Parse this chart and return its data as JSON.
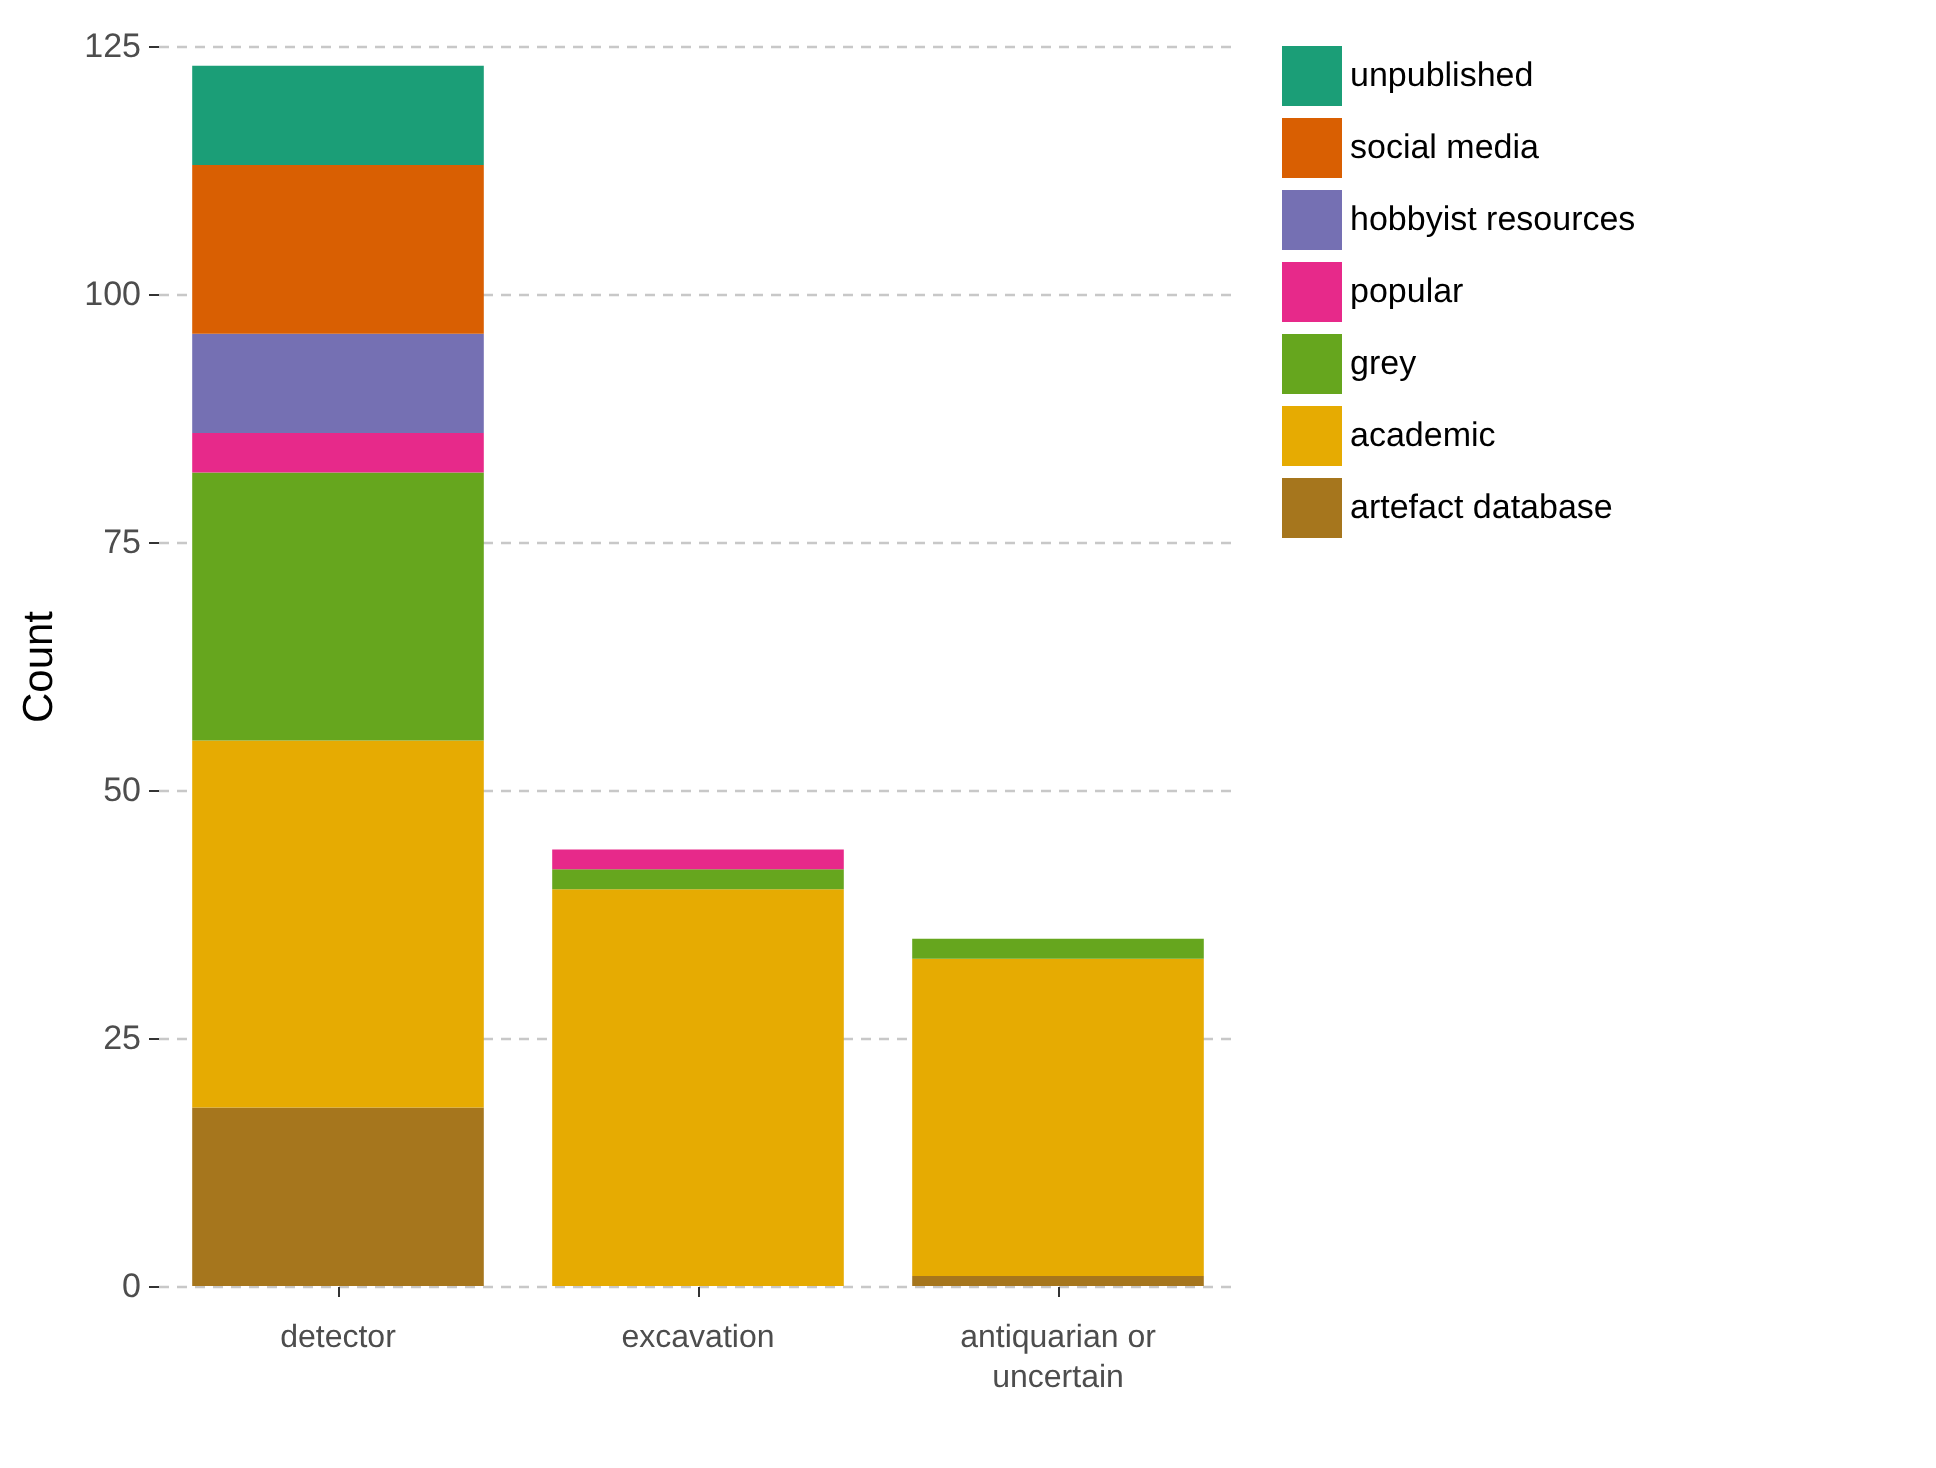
{
  "chart_data": {
    "type": "bar",
    "stacked": true,
    "ylabel": "Count",
    "categories": [
      "detector",
      "excavation",
      "antiquarian or uncertain"
    ],
    "series": [
      {
        "name": "artefact database",
        "color": "#a6761d",
        "values": [
          18,
          0,
          1
        ]
      },
      {
        "name": "academic",
        "color": "#e6ab02",
        "values": [
          37,
          40,
          32
        ]
      },
      {
        "name": "grey",
        "color": "#66a61e",
        "values": [
          27,
          2,
          2
        ]
      },
      {
        "name": "popular",
        "color": "#e7298a",
        "values": [
          4,
          2,
          0
        ]
      },
      {
        "name": "hobbyist resources",
        "color": "#7570b3",
        "values": [
          10,
          0,
          0
        ]
      },
      {
        "name": "social media",
        "color": "#d95f02",
        "values": [
          17,
          0,
          0
        ]
      },
      {
        "name": "unpublished",
        "color": "#1b9e77",
        "values": [
          10,
          0,
          0
        ]
      }
    ],
    "ylim": [
      0,
      125
    ],
    "yticks": [
      0,
      25,
      50,
      75,
      100,
      125
    ],
    "grid": "y",
    "legend": "right"
  }
}
